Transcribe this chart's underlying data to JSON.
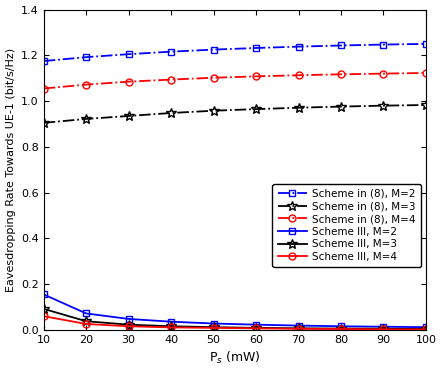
{
  "x": [
    10,
    20,
    30,
    40,
    50,
    60,
    70,
    80,
    90,
    100
  ],
  "scheme8_M2": [
    1.175,
    1.192,
    1.205,
    1.216,
    1.225,
    1.232,
    1.238,
    1.243,
    1.247,
    1.25
  ],
  "scheme8_M3": [
    0.905,
    0.922,
    0.935,
    0.948,
    0.958,
    0.965,
    0.971,
    0.976,
    0.98,
    0.983
  ],
  "scheme8_M4": [
    1.055,
    1.072,
    1.085,
    1.094,
    1.102,
    1.108,
    1.113,
    1.117,
    1.12,
    1.123
  ],
  "scheme3_M2": [
    0.155,
    0.072,
    0.048,
    0.036,
    0.028,
    0.023,
    0.019,
    0.016,
    0.014,
    0.012
  ],
  "scheme3_M3": [
    0.092,
    0.038,
    0.023,
    0.016,
    0.012,
    0.009,
    0.007,
    0.006,
    0.005,
    0.004
  ],
  "scheme3_M4": [
    0.06,
    0.026,
    0.016,
    0.011,
    0.009,
    0.007,
    0.005,
    0.004,
    0.003,
    0.002
  ],
  "color_blue": "#0000FF",
  "color_black": "#000000",
  "color_red": "#FF0000",
  "xlabel": "P$_{s}$ (mW)",
  "ylabel": "Eavesdropping Rate Towards UE-1 (bit/s/Hz)",
  "ylim": [
    0,
    1.4
  ],
  "xlim": [
    10,
    100
  ],
  "xticks": [
    10,
    20,
    30,
    40,
    50,
    60,
    70,
    80,
    90,
    100
  ],
  "yticks": [
    0,
    0.2,
    0.4,
    0.6,
    0.8,
    1.0,
    1.2,
    1.4
  ],
  "legend_labels_dashdot": [
    "Scheme in (8), M=2",
    "Scheme in (8), M=3",
    "Scheme in (8), M=4"
  ],
  "legend_labels_solid": [
    "Scheme III, M=2",
    "Scheme III, M=3",
    "Scheme III, M=4"
  ]
}
